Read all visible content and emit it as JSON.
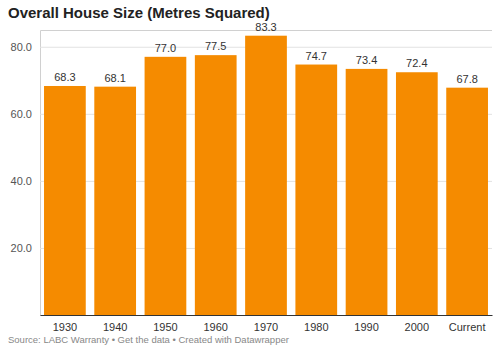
{
  "chart_data": {
    "type": "bar",
    "title": "Overall House Size (Metres Squared)",
    "categories": [
      "1930",
      "1940",
      "1950",
      "1960",
      "1970",
      "1980",
      "1990",
      "2000",
      "Current"
    ],
    "values": [
      68.3,
      68.1,
      77.0,
      77.5,
      83.3,
      74.7,
      73.4,
      72.4,
      67.8
    ],
    "value_labels": [
      "68.3",
      "68.1",
      "77.0",
      "77.5",
      "83.3",
      "74.7",
      "73.4",
      "72.4",
      "67.8"
    ],
    "data_labels": true,
    "color": "#f58b00",
    "ylim": [
      0,
      85
    ],
    "yticks": [
      {
        "value": 20,
        "label": "20.0"
      },
      {
        "value": 40,
        "label": "40.0"
      },
      {
        "value": 60,
        "label": "60.0"
      },
      {
        "value": 80,
        "label": "80.0"
      }
    ],
    "grid": true,
    "annotations": [
      "Source: LABC Warranty • Get the data • Created with Datawrapper"
    ]
  }
}
